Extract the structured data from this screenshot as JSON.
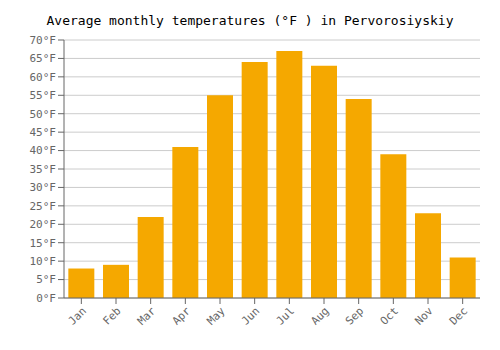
{
  "chart_data": {
    "type": "bar",
    "title": "Average monthly temperatures (°F ) in Pervorosiyskiy",
    "categories": [
      "Jan",
      "Feb",
      "Mar",
      "Apr",
      "May",
      "Jun",
      "Jul",
      "Aug",
      "Sep",
      "Oct",
      "Nov",
      "Dec"
    ],
    "values": [
      8,
      9,
      22,
      41,
      55,
      64,
      67,
      63,
      54,
      39,
      23,
      11
    ],
    "color": "#F5A800",
    "ylim": [
      0,
      70
    ],
    "yticks": [
      {
        "value": 0,
        "label": "0°F"
      },
      {
        "value": 5,
        "label": "5°F"
      },
      {
        "value": 10,
        "label": "10°F"
      },
      {
        "value": 15,
        "label": "15°F"
      },
      {
        "value": 20,
        "label": "20°F"
      },
      {
        "value": 25,
        "label": "25°F"
      },
      {
        "value": 30,
        "label": "30°F"
      },
      {
        "value": 35,
        "label": "35°F"
      },
      {
        "value": 40,
        "label": "40°F"
      },
      {
        "value": 45,
        "label": "45°F"
      },
      {
        "value": 50,
        "label": "50°F"
      },
      {
        "value": 55,
        "label": "55°F"
      },
      {
        "value": 60,
        "label": "60°F"
      },
      {
        "value": 65,
        "label": "65°F"
      },
      {
        "value": 70,
        "label": "70°F"
      }
    ],
    "grid": true
  }
}
